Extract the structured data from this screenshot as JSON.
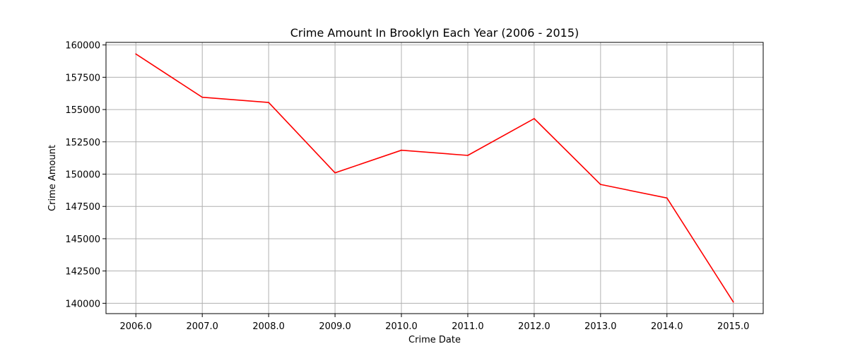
{
  "chart_data": {
    "type": "line",
    "title": "Crime Amount In Brooklyn Each Year (2006 - 2015)",
    "xlabel": "Crime Date",
    "ylabel": "Crime Amount",
    "x": [
      2006,
      2007,
      2008,
      2009,
      2010,
      2011,
      2012,
      2013,
      2014,
      2015
    ],
    "x_tick_labels": [
      "2006.0",
      "2007.0",
      "2008.0",
      "2009.0",
      "2010.0",
      "2011.0",
      "2012.0",
      "2013.0",
      "2014.0",
      "2015.0"
    ],
    "series": [
      {
        "values": [
          159300,
          155950,
          155550,
          150100,
          151850,
          151450,
          154300,
          149200,
          148150,
          140100
        ],
        "color": "#ff0000"
      }
    ],
    "y_ticks": [
      140000,
      142500,
      145000,
      147500,
      150000,
      152500,
      155000,
      157500,
      160000
    ],
    "y_tick_labels": [
      "140000",
      "142500",
      "145000",
      "147500",
      "150000",
      "152500",
      "155000",
      "157500",
      "160000"
    ],
    "xlim": [
      2005.55,
      2015.45
    ],
    "ylim": [
      139200,
      160200
    ],
    "grid": true,
    "grid_color": "#b0b0b0",
    "line_color": "#ff0000"
  }
}
